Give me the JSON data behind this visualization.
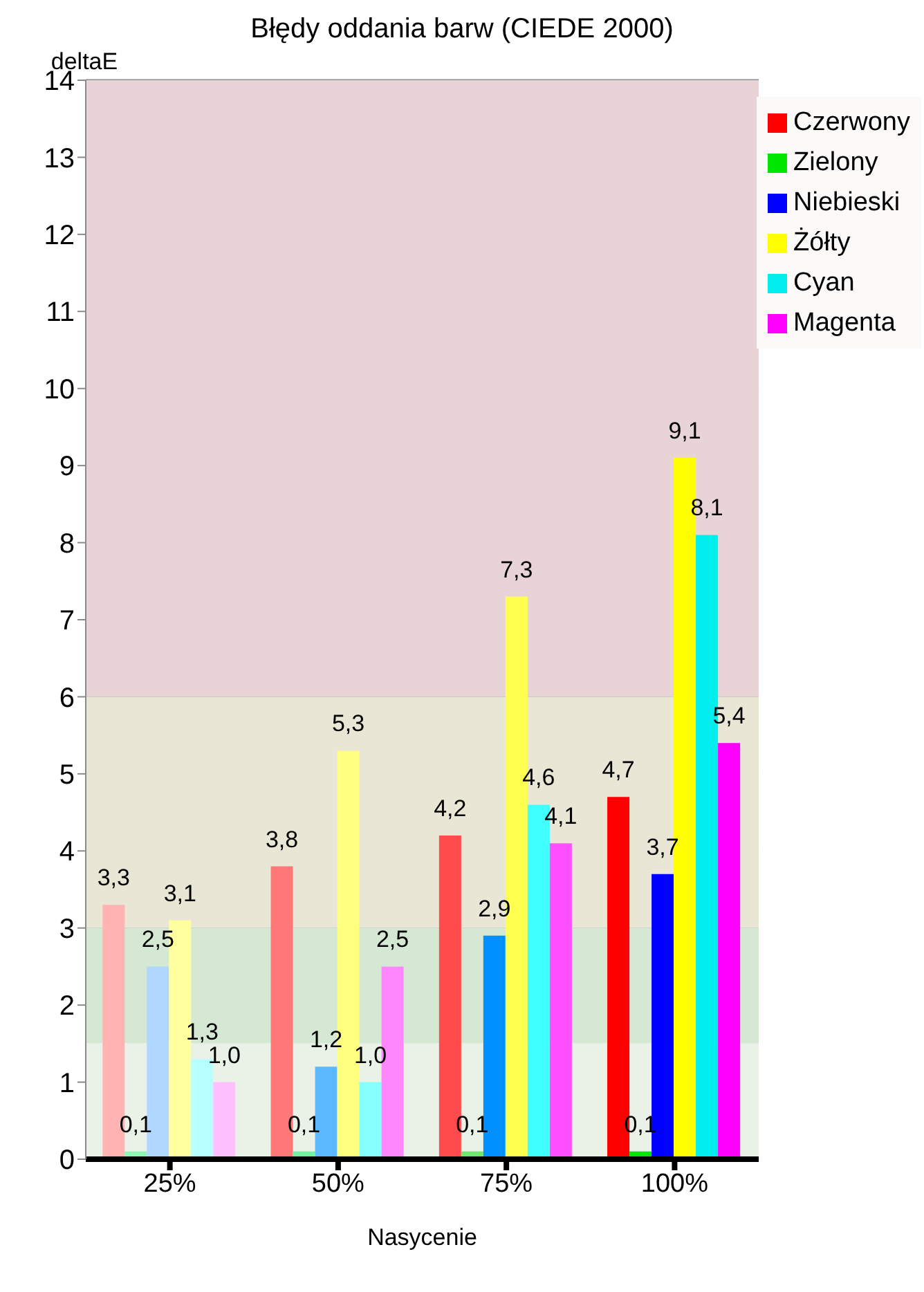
{
  "chart_data": {
    "type": "bar",
    "title": "Błędy oddania barw (CIEDE 2000)",
    "ylabel": "deltaE",
    "xlabel": "Nasycenie",
    "categories": [
      "25%",
      "50%",
      "75%",
      "100%"
    ],
    "series": [
      {
        "name": "Czerwony",
        "color": "#ff0000",
        "colors": [
          "#ffb3b3",
          "#ff7878",
          "#ff4b4b",
          "#ff0000"
        ],
        "values": [
          3.3,
          3.8,
          4.2,
          4.7
        ],
        "value_labels": [
          "3,3",
          "3,8",
          "4,2",
          "4,7"
        ]
      },
      {
        "name": "Zielony",
        "color": "#00e600",
        "colors": [
          "#8ff5b5",
          "#73f0a0",
          "#70e870",
          "#00e600"
        ],
        "values": [
          0.1,
          0.1,
          0.1,
          0.1
        ],
        "value_labels": [
          "0,1",
          "0,1",
          "0,1",
          "0,1"
        ]
      },
      {
        "name": "Niebieski",
        "color": "#0000ff",
        "colors": [
          "#b0d8ff",
          "#5cb8ff",
          "#0090ff",
          "#0000ff"
        ],
        "values": [
          2.5,
          1.2,
          2.9,
          3.7
        ],
        "value_labels": [
          "2,5",
          "1,2",
          "2,9",
          "3,7"
        ]
      },
      {
        "name": "Żółty",
        "color": "#ffff00",
        "colors": [
          "#ffffa0",
          "#ffff80",
          "#ffff50",
          "#ffff00"
        ],
        "values": [
          3.1,
          5.3,
          7.3,
          9.1
        ],
        "value_labels": [
          "3,1",
          "5,3",
          "7,3",
          "9,1"
        ]
      },
      {
        "name": "Cyan",
        "color": "#00eeee",
        "colors": [
          "#b8ffff",
          "#88ffff",
          "#40ffff",
          "#00eeee"
        ],
        "values": [
          1.3,
          1.0,
          4.6,
          8.1
        ],
        "value_labels": [
          "1,3",
          "1,0",
          "4,6",
          "8,1"
        ]
      },
      {
        "name": "Magenta",
        "color": "#ff00ff",
        "colors": [
          "#ffc0ff",
          "#ff88ff",
          "#ff50ff",
          "#ff00ff"
        ],
        "values": [
          1.0,
          2.5,
          4.1,
          5.4
        ],
        "value_labels": [
          "1,0",
          "2,5",
          "4,1",
          "5,4"
        ]
      }
    ],
    "ylim": [
      0,
      14
    ],
    "yticks": [
      0,
      1,
      2,
      3,
      4,
      5,
      6,
      7,
      8,
      9,
      10,
      11,
      12,
      13,
      14
    ],
    "bands": [
      {
        "axis": "y",
        "from": 6,
        "to": 14,
        "color": "#e8d4d6"
      },
      {
        "axis": "y",
        "from": 3,
        "to": 6,
        "color": "#e9e6d6"
      },
      {
        "axis": "y",
        "from": 1.5,
        "to": 3,
        "color": "#d4e8d4"
      },
      {
        "axis": "y",
        "from": 0,
        "to": 1.5,
        "color": "#eaf2e8"
      }
    ],
    "grid": "y",
    "legend": "top right"
  }
}
